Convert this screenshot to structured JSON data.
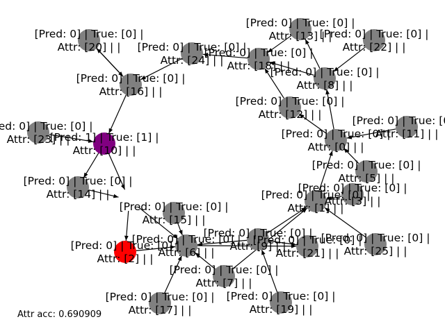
{
  "colors": {
    "default_node": "#808080",
    "pred_1_node": "#800080",
    "highlight_node": "#ff0000",
    "edge": "#000000",
    "label_text": "#000000",
    "background": "#ffffff"
  },
  "footer": {
    "text": "Attr acc: 0.690909"
  },
  "nodes": [
    {
      "id": "0",
      "line1": "[Pred: 0] | True: [0] |",
      "line2": "Attr: [0] | |",
      "fill": "default"
    },
    {
      "id": "1",
      "line1": "[Pred: 0] | True: [0] |",
      "line2": "Attr: [1] | |",
      "fill": "default"
    },
    {
      "id": "2",
      "line1": "[Pred: 0] | True: [0] |",
      "line2": "Attr: [2] | |",
      "fill": "highlight"
    },
    {
      "id": "3",
      "line1": "[Pred: 0] | True: [0] |",
      "line2": "Attr: [3] | |",
      "fill": "default"
    },
    {
      "id": "5",
      "line1": "[Pred: 0] | True: [0] |",
      "line2": "Attr: [5] | |",
      "fill": "default"
    },
    {
      "id": "6",
      "line1": "[Pred: 0] | True: [0] |",
      "line2": "Attr: [6] | |",
      "fill": "default"
    },
    {
      "id": "7",
      "line1": "[Pred: 0] | True: [0] |",
      "line2": "Attr: [7] | |",
      "fill": "default"
    },
    {
      "id": "8",
      "line1": "[Pred: 0] | True: [0] |",
      "line2": "Attr: [8] | |",
      "fill": "default"
    },
    {
      "id": "9",
      "line1": "[Pred: 0] | True: [0] |",
      "line2": "Attr: [9] | |",
      "fill": "default"
    },
    {
      "id": "10",
      "line1": "[Pred: 1] | True: [1] |",
      "line2": "Attr: [10] | |",
      "fill": "pred1"
    },
    {
      "id": "11",
      "line1": "[Pred: 0] | True: [0] |",
      "line2": "Attr: [11] | |",
      "fill": "default"
    },
    {
      "id": "12",
      "line1": "[Pred: 0] | True: [0] |",
      "line2": "Attr: [12] | |",
      "fill": "default"
    },
    {
      "id": "13",
      "line1": "[Pred: 0] | True: [0] |",
      "line2": "Attr: [13] | |",
      "fill": "default"
    },
    {
      "id": "14",
      "line1": "[Pred: 0] | True: [0] |",
      "line2": "Attr: [14] | |",
      "fill": "default"
    },
    {
      "id": "15",
      "line1": "[Pred: 0] | True: [0] |",
      "line2": "Attr: [15] | |",
      "fill": "default"
    },
    {
      "id": "16",
      "line1": "[Pred: 0] | True: [0] |",
      "line2": "Attr: [16] | |",
      "fill": "default"
    },
    {
      "id": "17",
      "line1": "[Pred: 0] | True: [0] |",
      "line2": "Attr: [17] | |",
      "fill": "default"
    },
    {
      "id": "18",
      "line1": "[Pred: 0] | True: [0] |",
      "line2": "Attr: [18] | |",
      "fill": "default"
    },
    {
      "id": "19",
      "line1": "[Pred: 0] | True: [0] |",
      "line2": "Attr: [19] | |",
      "fill": "default"
    },
    {
      "id": "20",
      "line1": "[Pred: 0] | True: [0] |",
      "line2": "Attr: [20] | |",
      "fill": "default"
    },
    {
      "id": "21",
      "line1": "[Pred: 0] | True: [0] |",
      "line2": "Attr: [21] | |",
      "fill": "default"
    },
    {
      "id": "22",
      "line1": "[Pred: 0] | True: [0] |",
      "line2": "Attr: [22] | |",
      "fill": "default"
    },
    {
      "id": "23",
      "line1": "[Pred: 0] | True: [0] |",
      "line2": "Attr: [23] | |",
      "fill": "default"
    },
    {
      "id": "24",
      "line1": "[Pred: 0] | True: [0] |",
      "line2": "Attr: [24] | |",
      "fill": "default"
    },
    {
      "id": "25",
      "line1": "[Pred: 0] | True: [0] |",
      "line2": "Attr: [25] | |",
      "fill": "default"
    }
  ],
  "edges": [
    {
      "from": "20",
      "to": "16"
    },
    {
      "from": "16",
      "to": "20"
    },
    {
      "from": "16",
      "to": "10"
    },
    {
      "from": "24",
      "to": "16"
    },
    {
      "from": "18",
      "to": "24"
    },
    {
      "from": "13",
      "to": "18"
    },
    {
      "from": "8",
      "to": "18"
    },
    {
      "from": "22",
      "to": "8"
    },
    {
      "from": "8",
      "to": "13"
    },
    {
      "from": "12",
      "to": "18"
    },
    {
      "from": "0",
      "to": "12"
    },
    {
      "from": "0",
      "to": "8"
    },
    {
      "from": "11",
      "to": "0"
    },
    {
      "from": "5",
      "to": "0"
    },
    {
      "from": "1",
      "to": "0"
    },
    {
      "from": "3",
      "to": "1"
    },
    {
      "from": "25",
      "to": "1"
    },
    {
      "from": "23",
      "to": "10"
    },
    {
      "from": "10",
      "to": "14"
    },
    {
      "from": "10",
      "to": "4"
    },
    {
      "from": "14",
      "to": "4"
    },
    {
      "from": "4",
      "to": "2"
    },
    {
      "from": "4",
      "to": "6"
    },
    {
      "from": "15",
      "to": "6"
    },
    {
      "from": "2",
      "to": "6"
    },
    {
      "from": "17",
      "to": "6"
    },
    {
      "from": "7",
      "to": "6"
    },
    {
      "from": "9",
      "to": "6"
    },
    {
      "from": "9",
      "to": "1"
    },
    {
      "from": "9",
      "to": "21"
    },
    {
      "from": "6",
      "to": "21"
    },
    {
      "from": "19",
      "to": "9"
    },
    {
      "from": "7",
      "to": "1"
    }
  ]
}
